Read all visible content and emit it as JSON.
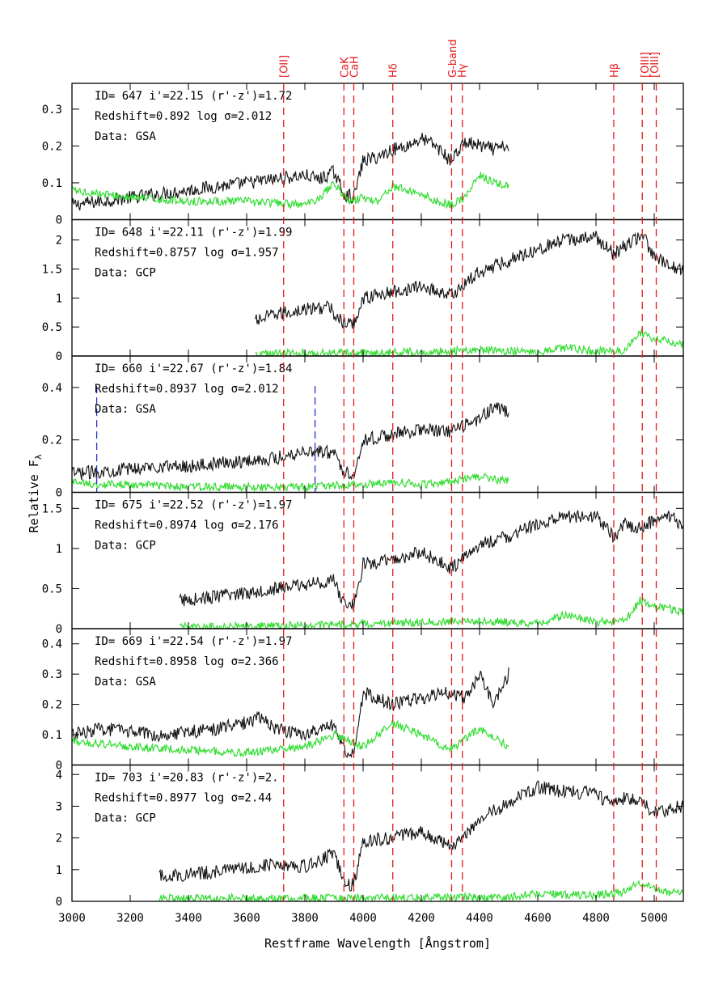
{
  "chart_data": {
    "type": "line",
    "xlabel": "Restframe Wavelength [Ångstrom]",
    "ylabel": "Relative F",
    "ylabel_sub": "λ",
    "xlim": [
      3000,
      5100
    ],
    "x_ticks": [
      3000,
      3200,
      3400,
      3600,
      3800,
      4000,
      4200,
      4400,
      4600,
      4800,
      5000
    ],
    "line_color": "#e41a1c",
    "spectrum_color": "#111111",
    "noise_color": "#33dd33",
    "marker_color": "#2233cc",
    "spectral_lines": [
      {
        "label": "[OII]",
        "x": 3727
      },
      {
        "label": "CaK",
        "x": 3934
      },
      {
        "label": "CaH",
        "x": 3968
      },
      {
        "label": "Hδ",
        "x": 4102
      },
      {
        "label": "G-band",
        "x": 4304
      },
      {
        "label": "Hγ",
        "x": 4341
      },
      {
        "label": "Hβ",
        "x": 4861
      },
      {
        "label": "[OIII]",
        "x": 4959
      },
      {
        "label": "[OIII]",
        "x": 5007
      }
    ],
    "panels": [
      {
        "annotation": [
          "ID= 647   i'=22.15  (r'-z')=1.72",
          "Redshift=0.892   log σ=2.012",
          "Data: GSA"
        ],
        "ylim": [
          0,
          0.37
        ],
        "yticks": [
          {
            "v": 0,
            "t": "0"
          },
          {
            "v": 0.1,
            "t": "0.1"
          },
          {
            "v": 0.2,
            "t": "0.2"
          },
          {
            "v": 0.3,
            "t": "0.3"
          }
        ],
        "series": [
          {
            "name": "spectrum",
            "x": [
              3000,
              3100,
              3200,
              3300,
              3400,
              3500,
              3600,
              3700,
              3800,
              3850,
              3900,
              3934,
              3968,
              4000,
              4050,
              4100,
              4150,
              4200,
              4250,
              4300,
              4350,
              4400,
              4450,
              4500
            ],
            "values": [
              0.04,
              0.05,
              0.06,
              0.07,
              0.08,
              0.09,
              0.1,
              0.11,
              0.12,
              0.11,
              0.13,
              0.07,
              0.06,
              0.16,
              0.17,
              0.19,
              0.2,
              0.22,
              0.2,
              0.16,
              0.21,
              0.2,
              0.19,
              0.2
            ]
          },
          {
            "name": "noise",
            "x": [
              3000,
              3100,
              3200,
              3400,
              3600,
              3800,
              3850,
              3900,
              3950,
              4000,
              4050,
              4100,
              4150,
              4200,
              4250,
              4300,
              4350,
              4400,
              4450,
              4500
            ],
            "values": [
              0.08,
              0.07,
              0.06,
              0.05,
              0.05,
              0.04,
              0.06,
              0.1,
              0.05,
              0.06,
              0.05,
              0.09,
              0.08,
              0.07,
              0.05,
              0.04,
              0.06,
              0.12,
              0.1,
              0.09
            ]
          }
        ]
      },
      {
        "annotation": [
          "ID= 648   i'=22.11  (r'-z')=1.99",
          "Redshift=0.8757  log σ=1.957",
          "Data: GCP"
        ],
        "ylim": [
          0,
          2.35
        ],
        "yticks": [
          {
            "v": 0,
            "t": "0"
          },
          {
            "v": 0.5,
            "t": "0.5"
          },
          {
            "v": 1,
            "t": "1"
          },
          {
            "v": 1.5,
            "t": "1.5"
          },
          {
            "v": 2,
            "t": "2"
          }
        ],
        "series": [
          {
            "name": "spectrum",
            "x": [
              3630,
              3700,
              3800,
              3880,
              3934,
              3968,
              4000,
              4100,
              4200,
              4304,
              4400,
              4500,
              4600,
              4700,
              4800,
              4861,
              4900,
              4959,
              5000,
              5050,
              5100
            ],
            "values": [
              0.6,
              0.72,
              0.8,
              0.85,
              0.55,
              0.55,
              1.0,
              1.1,
              1.2,
              1.05,
              1.45,
              1.65,
              1.85,
              2.0,
              2.05,
              1.75,
              1.9,
              2.1,
              1.7,
              1.55,
              1.5
            ]
          },
          {
            "name": "noise",
            "x": [
              3630,
              3800,
              4000,
              4200,
              4400,
              4600,
              4700,
              4800,
              4900,
              4950,
              5000,
              5050,
              5100
            ],
            "values": [
              0.03,
              0.05,
              0.06,
              0.07,
              0.1,
              0.08,
              0.15,
              0.08,
              0.1,
              0.4,
              0.3,
              0.25,
              0.2
            ]
          }
        ]
      },
      {
        "annotation": [
          "ID= 660   i'=22.67  (r'-z')=1.84",
          "Redshift=0.8937  log σ=2.012",
          "Data: GSA"
        ],
        "ylim": [
          0,
          0.52
        ],
        "yticks": [
          {
            "v": 0,
            "t": "0"
          },
          {
            "v": 0.2,
            "t": "0.2"
          },
          {
            "v": 0.4,
            "t": "0.4"
          }
        ],
        "markers": [
          3085,
          3835
        ],
        "series": [
          {
            "name": "spectrum",
            "x": [
              3000,
              3100,
              3200,
              3300,
              3400,
              3500,
              3600,
              3700,
              3800,
              3900,
              3934,
              3968,
              4000,
              4100,
              4200,
              4300,
              4400,
              4450,
              4500
            ],
            "values": [
              0.07,
              0.08,
              0.09,
              0.1,
              0.1,
              0.11,
              0.12,
              0.13,
              0.16,
              0.15,
              0.08,
              0.07,
              0.2,
              0.22,
              0.24,
              0.23,
              0.28,
              0.33,
              0.3
            ]
          },
          {
            "name": "noise",
            "x": [
              3000,
              3100,
              3200,
              3400,
              3600,
              3800,
              4000,
              4100,
              4200,
              4300,
              4400,
              4450,
              4500
            ],
            "values": [
              0.04,
              0.03,
              0.03,
              0.02,
              0.02,
              0.02,
              0.03,
              0.04,
              0.03,
              0.04,
              0.06,
              0.05,
              0.04
            ]
          }
        ]
      },
      {
        "annotation": [
          "ID= 675   i'=22.52  (r'-z')=1.97",
          "Redshift=0.8974  log σ=2.176",
          "Data: GCP"
        ],
        "ylim": [
          0,
          1.7
        ],
        "yticks": [
          {
            "v": 0,
            "t": "0"
          },
          {
            "v": 0.5,
            "t": "0.5"
          },
          {
            "v": 1,
            "t": "1"
          },
          {
            "v": 1.5,
            "t": "1.5"
          }
        ],
        "series": [
          {
            "name": "spectrum",
            "x": [
              3370,
              3500,
              3600,
              3700,
              3800,
              3900,
              3934,
              3968,
              4000,
              4100,
              4200,
              4304,
              4400,
              4500,
              4600,
              4700,
              4800,
              4861,
              4900,
              4950,
              5000,
              5050,
              5100
            ],
            "values": [
              0.35,
              0.4,
              0.45,
              0.5,
              0.55,
              0.6,
              0.3,
              0.3,
              0.8,
              0.85,
              0.95,
              0.75,
              1.05,
              1.15,
              1.3,
              1.4,
              1.4,
              1.15,
              1.3,
              1.25,
              1.35,
              1.4,
              1.3
            ]
          },
          {
            "name": "noise",
            "x": [
              3370,
              3600,
              3800,
              4000,
              4200,
              4400,
              4600,
              4700,
              4800,
              4900,
              4950,
              5000,
              5050,
              5100
            ],
            "values": [
              0.02,
              0.03,
              0.04,
              0.06,
              0.08,
              0.1,
              0.06,
              0.18,
              0.08,
              0.1,
              0.35,
              0.28,
              0.25,
              0.2
            ]
          }
        ]
      },
      {
        "annotation": [
          "ID= 669   i'=22.54  (r'-z')=1.97",
          "Redshift=0.8958  log σ=2.366",
          "Data: GSA"
        ],
        "ylim": [
          0,
          0.45
        ],
        "yticks": [
          {
            "v": 0,
            "t": "0"
          },
          {
            "v": 0.1,
            "t": "0.1"
          },
          {
            "v": 0.2,
            "t": "0.2"
          },
          {
            "v": 0.3,
            "t": "0.3"
          },
          {
            "v": 0.4,
            "t": "0.4"
          }
        ],
        "series": [
          {
            "name": "spectrum",
            "x": [
              3000,
              3100,
              3200,
              3300,
              3400,
              3500,
              3600,
              3650,
              3700,
              3800,
              3900,
              3934,
              3968,
              4000,
              4100,
              4200,
              4300,
              4350,
              4400,
              4450,
              4500
            ],
            "values": [
              0.1,
              0.12,
              0.11,
              0.1,
              0.11,
              0.12,
              0.14,
              0.16,
              0.12,
              0.1,
              0.13,
              0.05,
              0.04,
              0.24,
              0.2,
              0.22,
              0.24,
              0.22,
              0.3,
              0.2,
              0.3
            ]
          },
          {
            "name": "noise",
            "x": [
              3000,
              3200,
              3400,
              3600,
              3700,
              3800,
              3900,
              4000,
              4100,
              4200,
              4300,
              4400,
              4450,
              4500
            ],
            "values": [
              0.08,
              0.06,
              0.05,
              0.04,
              0.05,
              0.06,
              0.1,
              0.06,
              0.14,
              0.1,
              0.05,
              0.12,
              0.09,
              0.06
            ]
          }
        ]
      },
      {
        "annotation": [
          "ID= 703   i'=20.83  (r'-z')=2.",
          "Redshift=0.8977  log σ=2.44",
          "Data: GCP"
        ],
        "ylim": [
          0,
          4.3
        ],
        "yticks": [
          {
            "v": 0,
            "t": "0"
          },
          {
            "v": 1,
            "t": "1"
          },
          {
            "v": 2,
            "t": "2"
          },
          {
            "v": 3,
            "t": "3"
          },
          {
            "v": 4,
            "t": "4"
          }
        ],
        "series": [
          {
            "name": "spectrum",
            "x": [
              3300,
              3400,
              3500,
              3600,
              3700,
              3800,
              3900,
              3934,
              3968,
              4000,
              4100,
              4200,
              4304,
              4400,
              4500,
              4600,
              4700,
              4800,
              4861,
              4900,
              4959,
              5000,
              5050,
              5100
            ],
            "values": [
              0.8,
              0.85,
              0.95,
              1.05,
              1.2,
              1.1,
              1.5,
              0.6,
              0.5,
              1.9,
              2.0,
              2.2,
              1.7,
              2.6,
              3.1,
              3.6,
              3.45,
              3.4,
              3.0,
              3.3,
              3.1,
              2.8,
              2.9,
              3.0
            ]
          },
          {
            "name": "noise",
            "x": [
              3300,
              3500,
              3700,
              3900,
              4100,
              4300,
              4500,
              4600,
              4700,
              4800,
              4900,
              4950,
              5000,
              5050,
              5100
            ],
            "values": [
              0.1,
              0.1,
              0.1,
              0.1,
              0.12,
              0.12,
              0.12,
              0.25,
              0.2,
              0.2,
              0.3,
              0.6,
              0.4,
              0.3,
              0.25
            ]
          }
        ]
      }
    ]
  }
}
